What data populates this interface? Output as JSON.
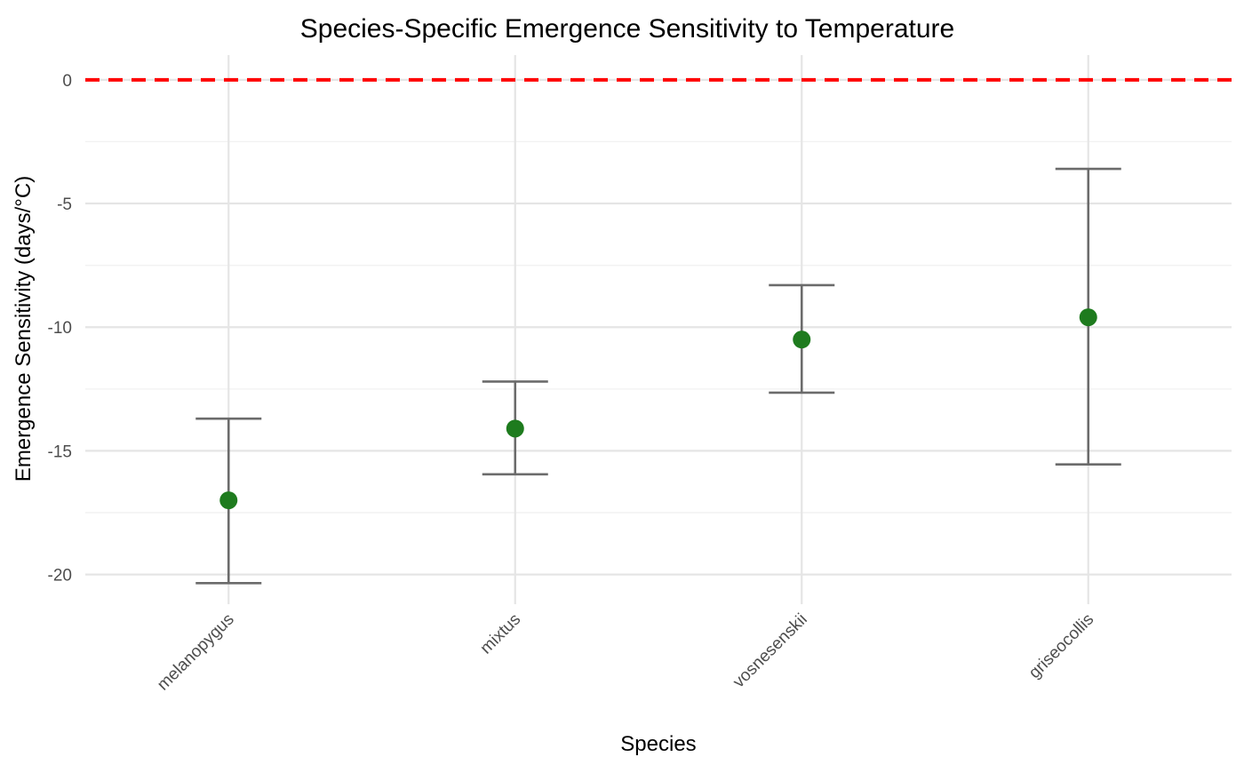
{
  "chart_data": {
    "type": "scatter",
    "title": "Species-Specific Emergence Sensitivity to Temperature",
    "xlabel": "Species",
    "ylabel": "Emergence Sensitivity (days/°C)",
    "categories": [
      "melanopygus",
      "mixtus",
      "vosnesenskii",
      "griseocollis"
    ],
    "values": [
      -17.0,
      -14.1,
      -10.5,
      -9.6
    ],
    "error_lower": [
      -20.35,
      -15.95,
      -12.65,
      -15.55
    ],
    "error_upper": [
      -13.7,
      -12.2,
      -8.3,
      -3.6
    ],
    "ylim": [
      -21.2,
      1.0
    ],
    "yticks": [
      0,
      -5,
      -10,
      -15,
      -20
    ],
    "ytick_labels": [
      "0",
      "-5",
      "-10",
      "-15",
      "-20"
    ],
    "reference_line": {
      "y": 0,
      "style": "dashed",
      "color": "#ff0000"
    },
    "point_color": "#1e7b1e",
    "errorbar_color": "#6b6b6b",
    "grid": true,
    "legend": "none"
  }
}
